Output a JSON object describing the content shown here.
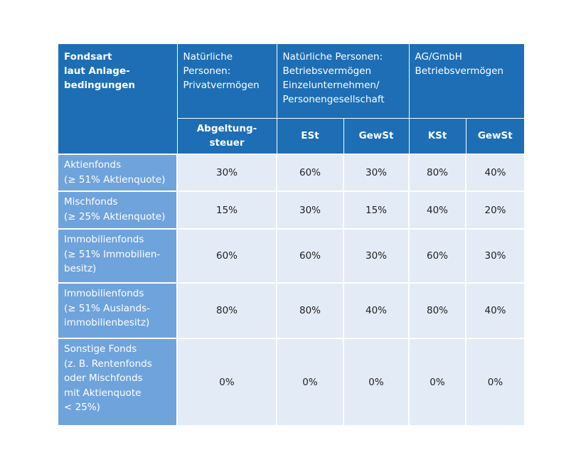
{
  "header": {
    "fondsart": "Fondsart\nlaut Anlage-\nbedingungen",
    "group_privat": "Natürliche\nPersonen:\nPrivatvermögen",
    "group_betrieb": "Natürliche Personen:\nBetriebsvermögen\nEinzelunternehmen/\nPersonengesellschaft",
    "group_ag": "AG/GmbH\nBetriebsvermögen",
    "sub_abgeltung": "Abgeltung-\nsteuer",
    "sub_est": "ESt",
    "sub_gewst1": "GewSt",
    "sub_kst": "KSt",
    "sub_gewst2": "GewSt"
  },
  "rows": [
    {
      "label": "Aktienfonds\n(≥ 51% Aktienquote)",
      "values": [
        "30%",
        "60%",
        "30%",
        "80%",
        "40%"
      ]
    },
    {
      "label": "Mischfonds\n(≥ 25% Aktienquote)",
      "values": [
        "15%",
        "30%",
        "15%",
        "40%",
        "20%"
      ]
    },
    {
      "label": "Immobilienfonds\n(≥ 51% Immobilien-\nbesitz)",
      "values": [
        "60%",
        "60%",
        "30%",
        "60%",
        "30%"
      ]
    },
    {
      "label": "Immobilienfonds\n(≥ 51% Auslands-\nimmobilienbesitz)",
      "values": [
        "80%",
        "80%",
        "40%",
        "80%",
        "40%"
      ]
    },
    {
      "label": "Sonstige Fonds\n(z. B. Rentenfonds\noder Mischfonds\nmit Aktienquote\n< 25%)",
      "values": [
        "0%",
        "0%",
        "0%",
        "0%",
        "0%"
      ]
    }
  ],
  "colors": {
    "header_bg": "#1d6eb5",
    "label_bg": "#6fa3dc",
    "cell_bg": "#e3ebf6"
  }
}
